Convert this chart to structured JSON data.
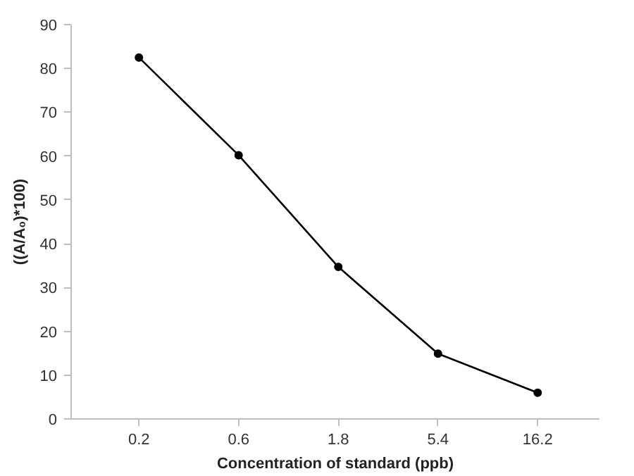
{
  "chart_data": {
    "type": "line",
    "xlabel": "Concentration of standard (ppb)",
    "ylabel": "((A/A₀)*100)",
    "categories": [
      "0.2",
      "0.6",
      "1.8",
      "5.4",
      "16.2"
    ],
    "series": [
      {
        "color": "#000000",
        "values": [
          82.5,
          60.2,
          34.7,
          14.9,
          6.0
        ]
      }
    ],
    "ylim": [
      0,
      90
    ],
    "yticks": [
      0,
      10,
      20,
      30,
      40,
      50,
      60,
      70,
      80,
      90
    ],
    "grid": false,
    "marker": "circle",
    "line_style": "solid"
  }
}
